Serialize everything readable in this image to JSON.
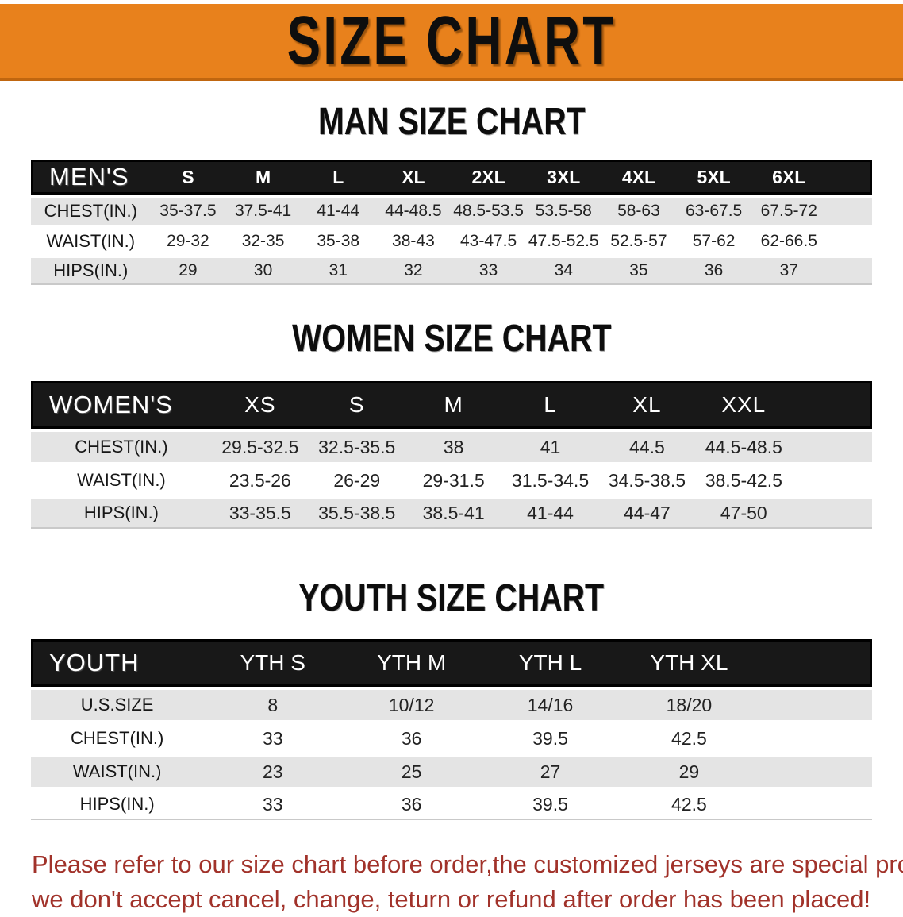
{
  "banner": {
    "title": "SIZE CHART",
    "bg_color": "#E8811C",
    "text_color": "#0e0e0e"
  },
  "men": {
    "heading": "MAN SIZE CHART",
    "corner": "MEN'S",
    "sizes": [
      "S",
      "M",
      "L",
      "XL",
      "2XL",
      "3XL",
      "4XL",
      "5XL",
      "6XL"
    ],
    "rows": [
      {
        "label": "CHEST(IN.)",
        "values": [
          "35-37.5",
          "37.5-41",
          "41-44",
          "44-48.5",
          "48.5-53.5",
          "53.5-58",
          "58-63",
          "63-67.5",
          "67.5-72"
        ]
      },
      {
        "label": "WAIST(IN.)",
        "values": [
          "29-32",
          "32-35",
          "35-38",
          "38-43",
          "43-47.5",
          "47.5-52.5",
          "52.5-57",
          "57-62",
          "62-66.5"
        ]
      },
      {
        "label": "HIPS(IN.)",
        "values": [
          "29",
          "30",
          "31",
          "32",
          "33",
          "34",
          "35",
          "36",
          "37"
        ]
      }
    ]
  },
  "women": {
    "heading": "WOMEN SIZE CHART",
    "corner": "WOMEN'S",
    "sizes": [
      "XS",
      "S",
      "M",
      "L",
      "XL",
      "XXL"
    ],
    "rows": [
      {
        "label": "CHEST(IN.)",
        "values": [
          "29.5-32.5",
          "32.5-35.5",
          "38",
          "41",
          "44.5",
          "44.5-48.5"
        ]
      },
      {
        "label": "WAIST(IN.)",
        "values": [
          "23.5-26",
          "26-29",
          "29-31.5",
          "31.5-34.5",
          "34.5-38.5",
          "38.5-42.5"
        ]
      },
      {
        "label": "HIPS(IN.)",
        "values": [
          "33-35.5",
          "35.5-38.5",
          "38.5-41",
          "41-44",
          "44-47",
          "47-50"
        ]
      }
    ]
  },
  "youth": {
    "heading": "YOUTH SIZE CHART",
    "corner": "YOUTH",
    "sizes": [
      "YTH S",
      "YTH M",
      "YTH L",
      "YTH XL"
    ],
    "rows": [
      {
        "label": "U.S.SIZE",
        "values": [
          "8",
          "10/12",
          "14/16",
          "18/20"
        ]
      },
      {
        "label": "CHEST(IN.)",
        "values": [
          "33",
          "36",
          "39.5",
          "42.5"
        ]
      },
      {
        "label": "WAIST(IN.)",
        "values": [
          "23",
          "25",
          "27",
          "29"
        ]
      },
      {
        "label": "HIPS(IN.)",
        "values": [
          "33",
          "36",
          "39.5",
          "42.5"
        ]
      }
    ]
  },
  "footer": {
    "line1": "Please refer to our size chart before order,the customized jerseys are special products,",
    "line2": "we don't accept cancel, change, teturn or refund after order has been placed!",
    "text_color": "#A1322A"
  },
  "colors": {
    "banner_orange": "#E8811C",
    "header_bar_black": "#181818",
    "stripe_gray": "#E4E4E4",
    "notice_red": "#A1322A"
  }
}
